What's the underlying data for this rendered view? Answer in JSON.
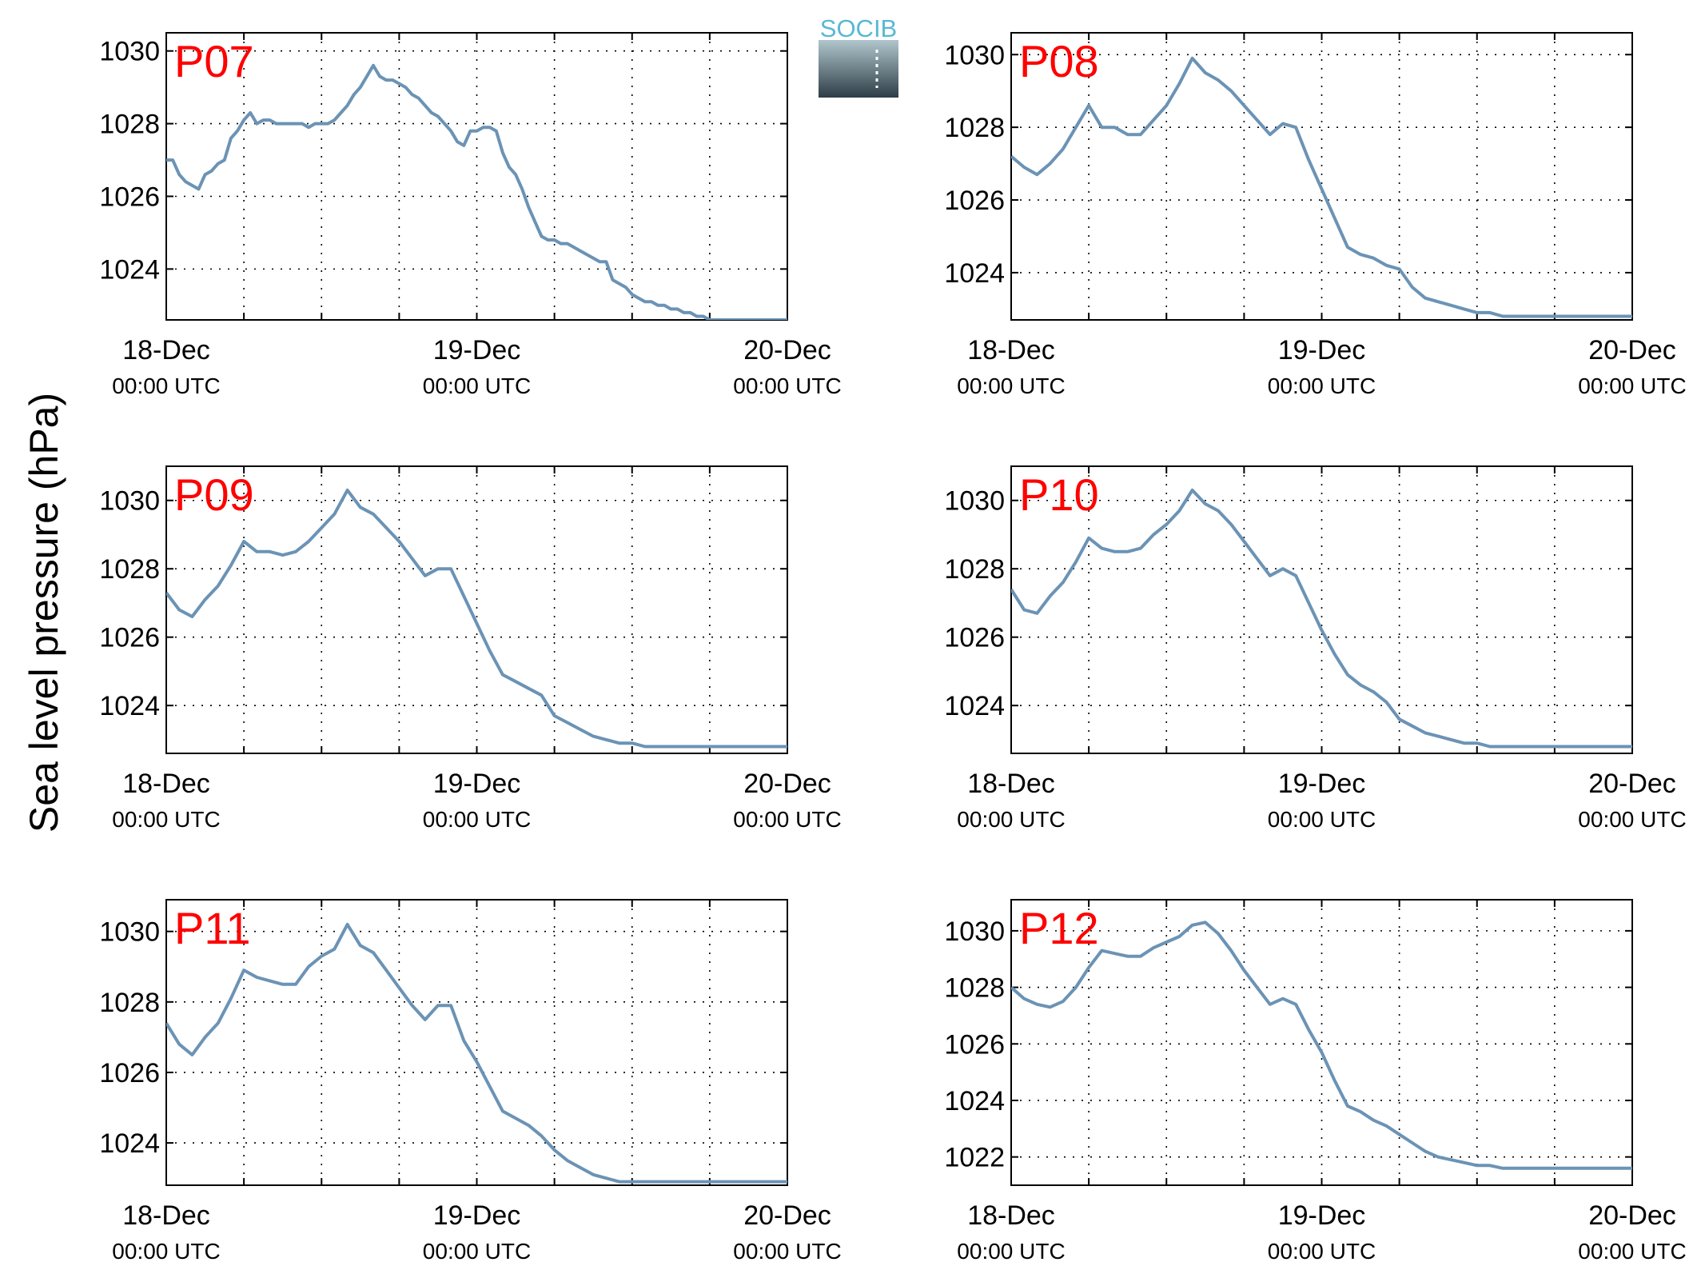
{
  "figure": {
    "ylabel": "Sea level pressure (hPa)",
    "logo_text": "SOCIB"
  },
  "colors": {
    "line": "#6b93b5",
    "panel_label": "#ff0000",
    "logo_text": "#58b8d3",
    "logo_top": "#b0c6cc",
    "logo_bottom": "#2e3d47"
  },
  "chart_data": [
    {
      "type": "line",
      "title": "P07",
      "grid": true,
      "xticks": [
        {
          "line1": "18-Dec",
          "line2": "00:00 UTC"
        },
        {
          "line1": "19-Dec",
          "line2": "00:00 UTC"
        },
        {
          "line1": "20-Dec",
          "line2": "00:00 UTC"
        }
      ],
      "xlim": [
        0,
        48
      ],
      "ylim": [
        1022.6,
        1030.5
      ],
      "yticks": [
        1024,
        1026,
        1028,
        1030
      ],
      "x": [
        0,
        0.5,
        1,
        1.5,
        2,
        2.5,
        3,
        3.5,
        4,
        4.5,
        5,
        5.5,
        6,
        6.5,
        7,
        7.5,
        8,
        8.5,
        9,
        9.5,
        10,
        10.5,
        11,
        11.5,
        12,
        12.5,
        13,
        13.5,
        14,
        14.5,
        15,
        15.5,
        16,
        16.5,
        17,
        17.5,
        18,
        18.5,
        19,
        19.5,
        20,
        20.5,
        21,
        21.5,
        22,
        22.5,
        23,
        23.5,
        24,
        24.5,
        25,
        25.5,
        26,
        26.5,
        27,
        27.5,
        28,
        28.5,
        29,
        29.5,
        30,
        30.5,
        31,
        31.5,
        32,
        32.5,
        33,
        33.5,
        34,
        34.5,
        35,
        35.5,
        36,
        36.5,
        37,
        37.5,
        38,
        38.5,
        39,
        39.5,
        40,
        40.5,
        41,
        41.5,
        42,
        42.5,
        43,
        43.5,
        44,
        44.5,
        45,
        45.5,
        46,
        46.5,
        47,
        47.5,
        48
      ],
      "y": [
        1027.0,
        1027.0,
        1026.6,
        1026.4,
        1026.3,
        1026.2,
        1026.6,
        1026.7,
        1026.9,
        1027.0,
        1027.6,
        1027.8,
        1028.1,
        1028.3,
        1028.0,
        1028.1,
        1028.1,
        1028.0,
        1028.0,
        1028.0,
        1028.0,
        1028.0,
        1027.9,
        1028.0,
        1028.0,
        1028.0,
        1028.1,
        1028.3,
        1028.5,
        1028.8,
        1029.0,
        1029.3,
        1029.6,
        1029.3,
        1029.2,
        1029.2,
        1029.1,
        1029.0,
        1028.8,
        1028.7,
        1028.5,
        1028.3,
        1028.2,
        1028.0,
        1027.8,
        1027.5,
        1027.4,
        1027.8,
        1027.8,
        1027.9,
        1027.9,
        1027.8,
        1027.2,
        1026.8,
        1026.6,
        1026.2,
        1025.7,
        1025.3,
        1024.9,
        1024.8,
        1024.8,
        1024.7,
        1024.7,
        1024.6,
        1024.5,
        1024.4,
        1024.3,
        1024.2,
        1024.2,
        1023.7,
        1023.6,
        1023.5,
        1023.3,
        1023.2,
        1023.1,
        1023.1,
        1023.0,
        1023.0,
        1022.9,
        1022.9,
        1022.8,
        1022.8,
        1022.7,
        1022.7,
        1022.6,
        1022.6,
        1022.6,
        1022.6,
        1022.6,
        1022.6,
        1022.6,
        1022.6,
        1022.6,
        1022.6,
        1022.6,
        1022.6,
        1022.6
      ]
    },
    {
      "type": "line",
      "title": "P08",
      "grid": true,
      "xticks": [
        {
          "line1": "18-Dec",
          "line2": "00:00 UTC"
        },
        {
          "line1": "19-Dec",
          "line2": "00:00 UTC"
        },
        {
          "line1": "20-Dec",
          "line2": "00:00 UTC"
        }
      ],
      "xlim": [
        0,
        48
      ],
      "ylim": [
        1022.7,
        1030.6
      ],
      "yticks": [
        1024,
        1026,
        1028,
        1030
      ],
      "x": [
        0,
        1,
        2,
        3,
        4,
        5,
        6,
        7,
        8,
        9,
        10,
        11,
        12,
        13,
        14,
        15,
        16,
        17,
        18,
        19,
        20,
        21,
        22,
        23,
        24,
        25,
        26,
        27,
        28,
        29,
        30,
        31,
        32,
        33,
        34,
        35,
        36,
        37,
        38,
        39,
        40,
        41,
        42,
        43,
        44,
        45,
        46,
        47,
        48
      ],
      "y": [
        1027.2,
        1026.9,
        1026.7,
        1027.0,
        1027.4,
        1028.0,
        1028.6,
        1028.0,
        1028.0,
        1027.8,
        1027.8,
        1028.2,
        1028.6,
        1029.2,
        1029.9,
        1029.5,
        1029.3,
        1029.0,
        1028.6,
        1028.2,
        1027.8,
        1028.1,
        1028.0,
        1027.1,
        1026.3,
        1025.5,
        1024.7,
        1024.5,
        1024.4,
        1024.2,
        1024.1,
        1023.6,
        1023.3,
        1023.2,
        1023.1,
        1023.0,
        1022.9,
        1022.9,
        1022.8,
        1022.8,
        1022.8,
        1022.8,
        1022.8,
        1022.8,
        1022.8,
        1022.8,
        1022.8,
        1022.8,
        1022.8
      ]
    },
    {
      "type": "line",
      "title": "P09",
      "grid": true,
      "xticks": [
        {
          "line1": "18-Dec",
          "line2": "00:00 UTC"
        },
        {
          "line1": "19-Dec",
          "line2": "00:00 UTC"
        },
        {
          "line1": "20-Dec",
          "line2": "00:00 UTC"
        }
      ],
      "xlim": [
        0,
        48
      ],
      "ylim": [
        1022.6,
        1031.0
      ],
      "yticks": [
        1024,
        1026,
        1028,
        1030
      ],
      "x": [
        0,
        1,
        2,
        3,
        4,
        5,
        6,
        7,
        8,
        9,
        10,
        11,
        12,
        13,
        14,
        15,
        16,
        17,
        18,
        19,
        20,
        21,
        22,
        23,
        24,
        25,
        26,
        27,
        28,
        29,
        30,
        31,
        32,
        33,
        34,
        35,
        36,
        37,
        38,
        39,
        40,
        41,
        42,
        43,
        44,
        45,
        46,
        47,
        48
      ],
      "y": [
        1027.3,
        1026.8,
        1026.6,
        1027.1,
        1027.5,
        1028.1,
        1028.8,
        1028.5,
        1028.5,
        1028.4,
        1028.5,
        1028.8,
        1029.2,
        1029.6,
        1030.3,
        1029.8,
        1029.6,
        1029.2,
        1028.8,
        1028.3,
        1027.8,
        1028.0,
        1028.0,
        1027.2,
        1026.4,
        1025.6,
        1024.9,
        1024.7,
        1024.5,
        1024.3,
        1023.7,
        1023.5,
        1023.3,
        1023.1,
        1023.0,
        1022.9,
        1022.9,
        1022.8,
        1022.8,
        1022.8,
        1022.8,
        1022.8,
        1022.8,
        1022.8,
        1022.8,
        1022.8,
        1022.8,
        1022.8,
        1022.8
      ]
    },
    {
      "type": "line",
      "title": "P10",
      "grid": true,
      "xticks": [
        {
          "line1": "18-Dec",
          "line2": "00:00 UTC"
        },
        {
          "line1": "19-Dec",
          "line2": "00:00 UTC"
        },
        {
          "line1": "20-Dec",
          "line2": "00:00 UTC"
        }
      ],
      "xlim": [
        0,
        48
      ],
      "ylim": [
        1022.6,
        1031.0
      ],
      "yticks": [
        1024,
        1026,
        1028,
        1030
      ],
      "x": [
        0,
        1,
        2,
        3,
        4,
        5,
        6,
        7,
        8,
        9,
        10,
        11,
        12,
        13,
        14,
        15,
        16,
        17,
        18,
        19,
        20,
        21,
        22,
        23,
        24,
        25,
        26,
        27,
        28,
        29,
        30,
        31,
        32,
        33,
        34,
        35,
        36,
        37,
        38,
        39,
        40,
        41,
        42,
        43,
        44,
        45,
        46,
        47,
        48
      ],
      "y": [
        1027.4,
        1026.8,
        1026.7,
        1027.2,
        1027.6,
        1028.2,
        1028.9,
        1028.6,
        1028.5,
        1028.5,
        1028.6,
        1029.0,
        1029.3,
        1029.7,
        1030.3,
        1029.9,
        1029.7,
        1029.3,
        1028.8,
        1028.3,
        1027.8,
        1028.0,
        1027.8,
        1027.0,
        1026.2,
        1025.5,
        1024.9,
        1024.6,
        1024.4,
        1024.1,
        1023.6,
        1023.4,
        1023.2,
        1023.1,
        1023.0,
        1022.9,
        1022.9,
        1022.8,
        1022.8,
        1022.8,
        1022.8,
        1022.8,
        1022.8,
        1022.8,
        1022.8,
        1022.8,
        1022.8,
        1022.8,
        1022.8
      ]
    },
    {
      "type": "line",
      "title": "P11",
      "grid": true,
      "xticks": [
        {
          "line1": "18-Dec",
          "line2": "00:00 UTC"
        },
        {
          "line1": "19-Dec",
          "line2": "00:00 UTC"
        },
        {
          "line1": "20-Dec",
          "line2": "00:00 UTC"
        }
      ],
      "xlim": [
        0,
        48
      ],
      "ylim": [
        1022.8,
        1030.9
      ],
      "yticks": [
        1024,
        1026,
        1028,
        1030
      ],
      "x": [
        0,
        1,
        2,
        3,
        4,
        5,
        6,
        7,
        8,
        9,
        10,
        11,
        12,
        13,
        14,
        15,
        16,
        17,
        18,
        19,
        20,
        21,
        22,
        23,
        24,
        25,
        26,
        27,
        28,
        29,
        30,
        31,
        32,
        33,
        34,
        35,
        36,
        37,
        38,
        39,
        40,
        41,
        42,
        43,
        44,
        45,
        46,
        47,
        48
      ],
      "y": [
        1027.4,
        1026.8,
        1026.5,
        1027.0,
        1027.4,
        1028.1,
        1028.9,
        1028.7,
        1028.6,
        1028.5,
        1028.5,
        1029.0,
        1029.3,
        1029.5,
        1030.2,
        1029.6,
        1029.4,
        1028.9,
        1028.4,
        1027.9,
        1027.5,
        1027.9,
        1027.9,
        1026.9,
        1026.3,
        1025.6,
        1024.9,
        1024.7,
        1024.5,
        1024.2,
        1023.8,
        1023.5,
        1023.3,
        1023.1,
        1023.0,
        1022.9,
        1022.9,
        1022.9,
        1022.9,
        1022.9,
        1022.9,
        1022.9,
        1022.9,
        1022.9,
        1022.9,
        1022.9,
        1022.9,
        1022.9,
        1022.9
      ]
    },
    {
      "type": "line",
      "title": "P12",
      "grid": true,
      "xticks": [
        {
          "line1": "18-Dec",
          "line2": "00:00 UTC"
        },
        {
          "line1": "19-Dec",
          "line2": "00:00 UTC"
        },
        {
          "line1": "20-Dec",
          "line2": "00:00 UTC"
        }
      ],
      "xlim": [
        0,
        48
      ],
      "ylim": [
        1021.0,
        1031.1
      ],
      "yticks": [
        1022,
        1024,
        1026,
        1028,
        1030
      ],
      "x": [
        0,
        1,
        2,
        3,
        4,
        5,
        6,
        7,
        8,
        9,
        10,
        11,
        12,
        13,
        14,
        15,
        16,
        17,
        18,
        19,
        20,
        21,
        22,
        23,
        24,
        25,
        26,
        27,
        28,
        29,
        30,
        31,
        32,
        33,
        34,
        35,
        36,
        37,
        38,
        39,
        40,
        41,
        42,
        43,
        44,
        45,
        46,
        47,
        48
      ],
      "y": [
        1028.0,
        1027.6,
        1027.4,
        1027.3,
        1027.5,
        1028.0,
        1028.7,
        1029.3,
        1029.2,
        1029.1,
        1029.1,
        1029.4,
        1029.6,
        1029.8,
        1030.2,
        1030.3,
        1029.9,
        1029.3,
        1028.6,
        1028.0,
        1027.4,
        1027.6,
        1027.4,
        1026.5,
        1025.7,
        1024.7,
        1023.8,
        1023.6,
        1023.3,
        1023.1,
        1022.8,
        1022.5,
        1022.2,
        1022.0,
        1021.9,
        1021.8,
        1021.7,
        1021.7,
        1021.6,
        1021.6,
        1021.6,
        1021.6,
        1021.6,
        1021.6,
        1021.6,
        1021.6,
        1021.6,
        1021.6,
        1021.6
      ]
    }
  ]
}
